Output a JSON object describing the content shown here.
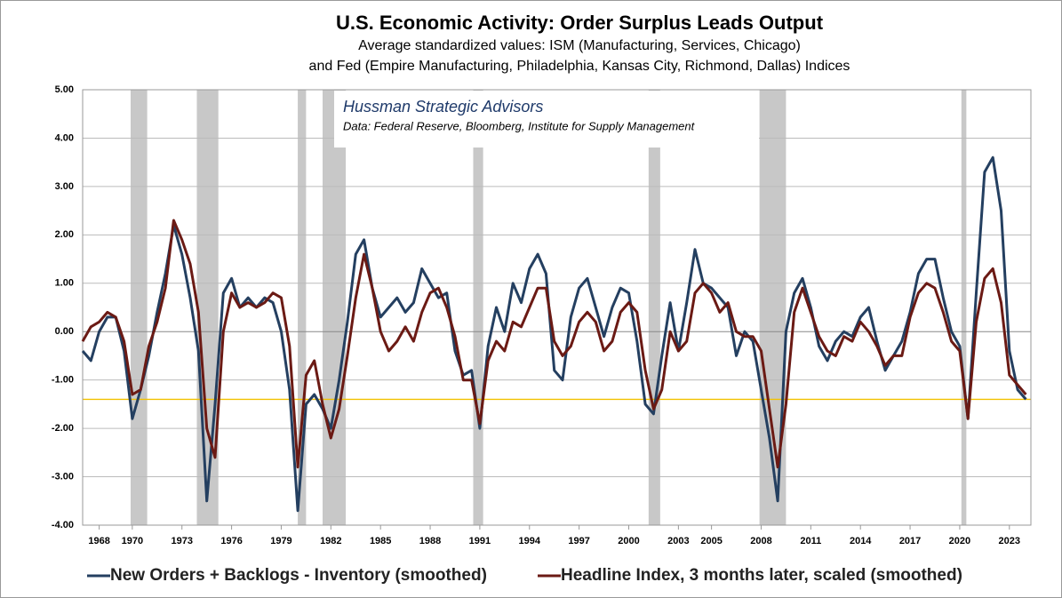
{
  "chart_data": {
    "type": "line",
    "title": "U.S. Economic Activity: Order Surplus Leads Output",
    "subtitle_lines": [
      "Average standardized values: ISM (Manufacturing, Services, Chicago)",
      "and Fed (Empire Manufacturing, Philadelphia, Kansas City, Richmond, Dallas) Indices"
    ],
    "annotation_title": "Hussman Strategic Advisors",
    "annotation_source": "Data: Federal Reserve, Bloomberg, Institute for Supply Management",
    "xlim": [
      1967,
      2024.3
    ],
    "xticks": [
      1968,
      1970,
      1973,
      1976,
      1979,
      1982,
      1985,
      1988,
      1991,
      1994,
      1997,
      2000,
      2003,
      2005,
      2008,
      2011,
      2014,
      2017,
      2020,
      2023
    ],
    "ylim": [
      -4,
      5
    ],
    "yticks": [
      {
        "value": -4,
        "label": "-4.00"
      },
      {
        "value": -3,
        "label": "-3.00"
      },
      {
        "value": -2,
        "label": "-2.00"
      },
      {
        "value": -1,
        "label": "-1.00"
      },
      {
        "value": 0,
        "label": "0.00"
      },
      {
        "value": 1,
        "label": "1.00"
      },
      {
        "value": 2,
        "label": "2.00"
      },
      {
        "value": 3,
        "label": "3.00"
      },
      {
        "value": 4,
        "label": "4.00"
      },
      {
        "value": 5,
        "label": "5.00"
      }
    ],
    "grid": true,
    "recessions": [
      [
        1969.9,
        1970.9
      ],
      [
        1973.9,
        1975.2
      ],
      [
        1980.0,
        1980.5
      ],
      [
        1981.5,
        1982.9
      ],
      [
        1990.6,
        1991.2
      ],
      [
        2001.2,
        2001.9
      ],
      [
        2007.9,
        2009.5
      ],
      [
        2020.1,
        2020.4
      ]
    ],
    "recession_color": "#c8c8c8",
    "reference_line": -1.4,
    "reference_color": "#f2c100",
    "x": [
      1967,
      1967.5,
      1968,
      1968.5,
      1969,
      1969.5,
      1970,
      1970.5,
      1971,
      1971.5,
      1972,
      1972.5,
      1973,
      1973.5,
      1974,
      1974.5,
      1975,
      1975.5,
      1976,
      1976.5,
      1977,
      1977.5,
      1978,
      1978.5,
      1979,
      1979.5,
      1980,
      1980.5,
      1981,
      1981.5,
      1982,
      1982.5,
      1983,
      1983.5,
      1984,
      1984.5,
      1985,
      1985.5,
      1986,
      1986.5,
      1987,
      1987.5,
      1988,
      1988.5,
      1989,
      1989.5,
      1990,
      1990.5,
      1991,
      1991.5,
      1992,
      1992.5,
      1993,
      1993.5,
      1994,
      1994.5,
      1995,
      1995.5,
      1996,
      1996.5,
      1997,
      1997.5,
      1998,
      1998.5,
      1999,
      1999.5,
      2000,
      2000.5,
      2001,
      2001.5,
      2002,
      2002.5,
      2003,
      2003.5,
      2004,
      2004.5,
      2005,
      2005.5,
      2006,
      2006.5,
      2007,
      2007.5,
      2008,
      2008.5,
      2009,
      2009.5,
      2010,
      2010.5,
      2011,
      2011.5,
      2012,
      2012.5,
      2013,
      2013.5,
      2014,
      2014.5,
      2015,
      2015.5,
      2016,
      2016.5,
      2017,
      2017.5,
      2018,
      2018.5,
      2019,
      2019.5,
      2020,
      2020.5,
      2021,
      2021.5,
      2022,
      2022.5,
      2023,
      2023.5,
      2024
    ],
    "series": [
      {
        "name": "New Orders + Backlogs - Inventory (smoothed)",
        "color": "#243f60",
        "values": [
          -0.4,
          -0.6,
          0.0,
          0.3,
          0.3,
          -0.4,
          -1.8,
          -1.2,
          -0.5,
          0.4,
          1.2,
          2.2,
          1.6,
          0.7,
          -0.4,
          -3.5,
          -1.5,
          0.8,
          1.1,
          0.5,
          0.7,
          0.5,
          0.7,
          0.6,
          0.0,
          -1.2,
          -3.7,
          -1.5,
          -1.3,
          -1.6,
          -2.0,
          -1.0,
          0.2,
          1.6,
          1.9,
          0.9,
          0.3,
          0.5,
          0.7,
          0.4,
          0.6,
          1.3,
          1.0,
          0.7,
          0.8,
          -0.4,
          -0.9,
          -0.8,
          -2.0,
          -0.3,
          0.5,
          0.0,
          1.0,
          0.6,
          1.3,
          1.6,
          1.2,
          -0.8,
          -1.0,
          0.3,
          0.9,
          1.1,
          0.5,
          -0.1,
          0.5,
          0.9,
          0.8,
          -0.2,
          -1.5,
          -1.7,
          -0.5,
          0.6,
          -0.4,
          0.6,
          1.7,
          1.0,
          0.9,
          0.7,
          0.5,
          -0.5,
          0.0,
          -0.2,
          -1.2,
          -2.2,
          -3.5,
          0.0,
          0.8,
          1.1,
          0.5,
          -0.3,
          -0.6,
          -0.2,
          0.0,
          -0.1,
          0.3,
          0.5,
          -0.2,
          -0.8,
          -0.5,
          -0.2,
          0.4,
          1.2,
          1.5,
          1.5,
          0.7,
          0.0,
          -0.3,
          -1.8,
          0.8,
          3.3,
          3.6,
          2.5,
          -0.4,
          -1.2,
          -1.4
        ]
      },
      {
        "name": "Headline Index, 3 months later, scaled (smoothed)",
        "color": "#6b1a14",
        "values": [
          -0.2,
          0.1,
          0.2,
          0.4,
          0.3,
          -0.2,
          -1.3,
          -1.2,
          -0.3,
          0.2,
          0.9,
          2.3,
          1.9,
          1.4,
          0.4,
          -2.0,
          -2.6,
          0.0,
          0.8,
          0.5,
          0.6,
          0.5,
          0.6,
          0.8,
          0.7,
          -0.3,
          -2.8,
          -0.9,
          -0.6,
          -1.5,
          -2.2,
          -1.6,
          -0.5,
          0.7,
          1.6,
          0.9,
          0.0,
          -0.4,
          -0.2,
          0.1,
          -0.2,
          0.4,
          0.8,
          0.9,
          0.5,
          -0.1,
          -1.0,
          -1.0,
          -1.9,
          -0.6,
          -0.2,
          -0.4,
          0.2,
          0.1,
          0.5,
          0.9,
          0.9,
          -0.2,
          -0.5,
          -0.3,
          0.2,
          0.4,
          0.2,
          -0.4,
          -0.2,
          0.4,
          0.6,
          0.4,
          -0.8,
          -1.6,
          -1.2,
          0.0,
          -0.4,
          -0.2,
          0.8,
          1.0,
          0.8,
          0.4,
          0.6,
          0.0,
          -0.1,
          -0.1,
          -0.4,
          -1.6,
          -2.8,
          -1.5,
          0.4,
          0.9,
          0.4,
          -0.1,
          -0.4,
          -0.5,
          -0.1,
          -0.2,
          0.2,
          0.0,
          -0.3,
          -0.7,
          -0.5,
          -0.5,
          0.3,
          0.8,
          1.0,
          0.9,
          0.4,
          -0.2,
          -0.4,
          -1.8,
          0.2,
          1.1,
          1.3,
          0.6,
          -0.9,
          -1.1,
          -1.3
        ]
      }
    ]
  }
}
